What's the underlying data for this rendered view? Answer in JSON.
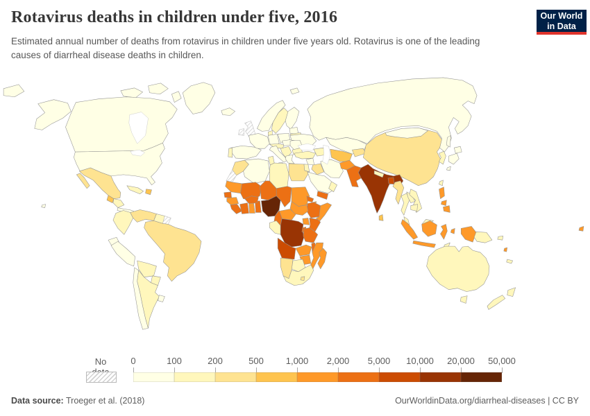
{
  "header": {
    "title": "Rotavirus deaths in children under five, 2016",
    "subtitle": "Estimated annual number of deaths from rotavirus in children under five years old. Rotavirus is one of the leading causes of diarrheal disease deaths in children.",
    "logo": {
      "line1": "Our World",
      "line2": "in Data",
      "bg_color": "#002147",
      "accent_color": "#e0342c"
    }
  },
  "legend": {
    "no_data_label": "No data",
    "tick_labels": [
      "0",
      "100",
      "200",
      "500",
      "1,000",
      "2,000",
      "5,000",
      "10,000",
      "20,000",
      "50,000"
    ],
    "colors": [
      "#ffffe5",
      "#fff7bc",
      "#fee391",
      "#fec44f",
      "#fe9929",
      "#ec7014",
      "#cc4c02",
      "#993404",
      "#662506"
    ]
  },
  "footer": {
    "source_label": "Data source:",
    "source_value": " Troeger et al. (2018)",
    "right_text": "OurWorldinData.org/diarrheal-diseases | CC BY"
  },
  "chart_data": {
    "type": "heatmap",
    "subtype": "choropleth-world-map",
    "title": "Rotavirus deaths in children under five, 2016",
    "unit": "estimated annual deaths from rotavirus in children under five",
    "bin_edges": [
      0,
      100,
      200,
      500,
      1000,
      2000,
      5000,
      10000,
      20000,
      50000
    ],
    "bin_colors": [
      "#ffffe5",
      "#fff7bc",
      "#fee391",
      "#fec44f",
      "#fe9929",
      "#ec7014",
      "#cc4c02",
      "#993404",
      "#662506"
    ],
    "bin_ranges": [
      "0–100",
      "100–200",
      "200–500",
      "500–1,000",
      "1,000–2,000",
      "2,000–5,000",
      "5,000–10,000",
      "10,000–20,000",
      "20,000–50,000"
    ],
    "no_data": {
      "label": "No data",
      "pattern": "diagonal-hatch"
    },
    "countries": [
      {
        "id": "russia",
        "name": "Russia",
        "bin": 0
      },
      {
        "id": "canada",
        "name": "Canada",
        "bin": 0
      },
      {
        "id": "usa",
        "name": "United States",
        "bin": 0
      },
      {
        "id": "greenland",
        "name": "Greenland",
        "bin": 0
      },
      {
        "id": "mexico",
        "name": "Mexico",
        "bin": 2
      },
      {
        "id": "guatemala",
        "name": "Guatemala",
        "bin": 3
      },
      {
        "id": "honduras-nicaragua",
        "name": "Honduras & Nicaragua",
        "bin": 1
      },
      {
        "id": "costa-rica-panama",
        "name": "Costa Rica & Panama",
        "bin": 0
      },
      {
        "id": "cuba",
        "name": "Cuba",
        "bin": 1
      },
      {
        "id": "hispaniola",
        "name": "Haiti & Dominican Republic",
        "bin": 3
      },
      {
        "id": "colombia",
        "name": "Colombia",
        "bin": 1
      },
      {
        "id": "venezuela",
        "name": "Venezuela",
        "bin": 2
      },
      {
        "id": "guyana-suriname",
        "name": "Guyana & Suriname",
        "bin": 1
      },
      {
        "id": "french-guiana",
        "name": "French Guiana",
        "no_data": true
      },
      {
        "id": "brazil",
        "name": "Brazil",
        "bin": 2
      },
      {
        "id": "ecuador",
        "name": "Ecuador",
        "bin": 0
      },
      {
        "id": "peru",
        "name": "Peru",
        "bin": 0
      },
      {
        "id": "bolivia",
        "name": "Bolivia",
        "bin": 1
      },
      {
        "id": "paraguay",
        "name": "Paraguay",
        "bin": 1
      },
      {
        "id": "chile",
        "name": "Chile",
        "bin": 0
      },
      {
        "id": "argentina",
        "name": "Argentina",
        "bin": 1
      },
      {
        "id": "uruguay",
        "name": "Uruguay",
        "bin": 0
      },
      {
        "id": "iceland",
        "name": "Iceland",
        "bin": 0
      },
      {
        "id": "uk",
        "name": "United Kingdom",
        "no_data": true
      },
      {
        "id": "ireland",
        "name": "Ireland",
        "no_data": true
      },
      {
        "id": "norway",
        "name": "Norway",
        "bin": 0
      },
      {
        "id": "sweden",
        "name": "Sweden",
        "bin": 1
      },
      {
        "id": "finland",
        "name": "Finland",
        "bin": 0
      },
      {
        "id": "denmark",
        "name": "Denmark",
        "bin": 1
      },
      {
        "id": "baltics",
        "name": "Baltic states",
        "bin": 0
      },
      {
        "id": "belarus",
        "name": "Belarus",
        "bin": 1
      },
      {
        "id": "poland",
        "name": "Poland",
        "bin": 0
      },
      {
        "id": "germany",
        "name": "Germany",
        "bin": 0
      },
      {
        "id": "france",
        "name": "France",
        "bin": 0
      },
      {
        "id": "spain",
        "name": "Spain",
        "bin": 0
      },
      {
        "id": "portugal",
        "name": "Portugal",
        "bin": 1
      },
      {
        "id": "italy",
        "name": "Italy",
        "bin": 0
      },
      {
        "id": "switzerland-austria",
        "name": "Switzerland & Austria",
        "bin": 1
      },
      {
        "id": "czech-hungary",
        "name": "Czechia, Slovakia & Hungary",
        "bin": 0
      },
      {
        "id": "balkans",
        "name": "Western Balkans",
        "bin": 1
      },
      {
        "id": "romania",
        "name": "Romania",
        "bin": 0
      },
      {
        "id": "bulgaria",
        "name": "Bulgaria",
        "bin": 1
      },
      {
        "id": "greece",
        "name": "Greece",
        "bin": 0
      },
      {
        "id": "ukraine",
        "name": "Ukraine",
        "bin": 0
      },
      {
        "id": "turkey",
        "name": "Turkey",
        "bin": 1
      },
      {
        "id": "caucasus",
        "name": "Caucasus states",
        "bin": 1
      },
      {
        "id": "syria",
        "name": "Syria",
        "bin": 0
      },
      {
        "id": "israel-jordan",
        "name": "Israel & Jordan",
        "bin": 1
      },
      {
        "id": "iraq",
        "name": "Iraq",
        "bin": 2
      },
      {
        "id": "saudi-arabia",
        "name": "Saudi Arabia",
        "bin": 0
      },
      {
        "id": "yemen",
        "name": "Yemen",
        "bin": 5
      },
      {
        "id": "oman",
        "name": "Oman",
        "bin": 1
      },
      {
        "id": "iran",
        "name": "Iran",
        "bin": 0
      },
      {
        "id": "kazakhstan",
        "name": "Kazakhstan",
        "bin": 0
      },
      {
        "id": "turkmenistan-uzbekistan",
        "name": "Turkmenistan & Uzbekistan",
        "bin": 3
      },
      {
        "id": "kyrgyzstan-tajikistan",
        "name": "Kyrgyzstan & Tajikistan",
        "bin": 2
      },
      {
        "id": "afghanistan",
        "name": "Afghanistan",
        "bin": 4
      },
      {
        "id": "pakistan",
        "name": "Pakistan",
        "bin": 5
      },
      {
        "id": "india",
        "name": "India",
        "bin": 7
      },
      {
        "id": "nepal",
        "name": "Nepal",
        "bin": 1
      },
      {
        "id": "bangladesh",
        "name": "Bangladesh",
        "bin": 6
      },
      {
        "id": "sri-lanka",
        "name": "Sri Lanka",
        "bin": 3
      },
      {
        "id": "myanmar",
        "name": "Myanmar",
        "bin": 2
      },
      {
        "id": "thailand",
        "name": "Thailand",
        "bin": 1
      },
      {
        "id": "laos",
        "name": "Laos",
        "bin": 1
      },
      {
        "id": "vietnam",
        "name": "Vietnam",
        "bin": 1
      },
      {
        "id": "cambodia",
        "name": "Cambodia",
        "bin": 1
      },
      {
        "id": "malaysia",
        "name": "Malaysia",
        "bin": 1
      },
      {
        "id": "china",
        "name": "China",
        "bin": 2
      },
      {
        "id": "mongolia",
        "name": "Mongolia",
        "bin": 0
      },
      {
        "id": "koreas",
        "name": "North & South Korea",
        "bin": 1
      },
      {
        "id": "japan",
        "name": "Japan",
        "bin": 0
      },
      {
        "id": "taiwan",
        "name": "Taiwan",
        "bin": 1
      },
      {
        "id": "philippines",
        "name": "Philippines",
        "bin": 4
      },
      {
        "id": "indonesia",
        "name": "Indonesia",
        "bin": 4
      },
      {
        "id": "timor",
        "name": "Timor-Leste",
        "bin": 1
      },
      {
        "id": "papua-new-guinea",
        "name": "Papua New Guinea",
        "bin": 1
      },
      {
        "id": "australia",
        "name": "Australia",
        "bin": 1
      },
      {
        "id": "new-zealand",
        "name": "New Zealand",
        "bin": 1
      },
      {
        "id": "solomon-islands",
        "name": "Solomon Islands",
        "bin": 1
      },
      {
        "id": "vanuatu",
        "name": "Vanuatu",
        "bin": 4
      },
      {
        "id": "fiji",
        "name": "Fiji",
        "bin": 4
      },
      {
        "id": "new-caledonia",
        "name": "New Caledonia",
        "bin": 1
      },
      {
        "id": "morocco",
        "name": "Morocco",
        "bin": 2
      },
      {
        "id": "western-sahara",
        "name": "Western Sahara",
        "no_data": true
      },
      {
        "id": "algeria",
        "name": "Algeria",
        "bin": 0
      },
      {
        "id": "tunisia",
        "name": "Tunisia",
        "bin": 1
      },
      {
        "id": "libya",
        "name": "Libya",
        "bin": 1
      },
      {
        "id": "egypt",
        "name": "Egypt",
        "bin": 2
      },
      {
        "id": "mauritania",
        "name": "Mauritania",
        "bin": 4
      },
      {
        "id": "mali",
        "name": "Mali",
        "bin": 5
      },
      {
        "id": "senegal",
        "name": "Senegal",
        "bin": 5
      },
      {
        "id": "guinea",
        "name": "Guinea",
        "bin": 4
      },
      {
        "id": "sierra-leone-liberia",
        "name": "Sierra Leone & Liberia",
        "bin": 5
      },
      {
        "id": "cote-divoire",
        "name": "Côte d'Ivoire",
        "bin": 5
      },
      {
        "id": "ghana",
        "name": "Ghana",
        "bin": 4
      },
      {
        "id": "togo-benin",
        "name": "Togo & Benin",
        "bin": 5
      },
      {
        "id": "burkina-faso",
        "name": "Burkina Faso",
        "bin": 5
      },
      {
        "id": "niger",
        "name": "Niger",
        "bin": 5
      },
      {
        "id": "nigeria",
        "name": "Nigeria",
        "bin": 8
      },
      {
        "id": "chad",
        "name": "Chad",
        "bin": 5
      },
      {
        "id": "sudan",
        "name": "Sudan",
        "bin": 4
      },
      {
        "id": "eritrea",
        "name": "Eritrea",
        "bin": 5
      },
      {
        "id": "djibouti",
        "name": "Djibouti",
        "bin": 4
      },
      {
        "id": "ethiopia",
        "name": "Ethiopia",
        "bin": 5
      },
      {
        "id": "somalia",
        "name": "Somalia",
        "bin": 4
      },
      {
        "id": "south-sudan",
        "name": "South Sudan",
        "bin": 4
      },
      {
        "id": "central-african-republic",
        "name": "Central African Republic",
        "bin": 4
      },
      {
        "id": "cameroon",
        "name": "Cameroon",
        "bin": 5
      },
      {
        "id": "uganda",
        "name": "Uganda",
        "bin": 4
      },
      {
        "id": "kenya",
        "name": "Kenya",
        "bin": 5
      },
      {
        "id": "dr-congo",
        "name": "Democratic Republic of Congo",
        "bin": 7
      },
      {
        "id": "congo-gabon",
        "name": "Congo & Gabon",
        "bin": 1
      },
      {
        "id": "rwanda-burundi",
        "name": "Rwanda & Burundi",
        "bin": 5
      },
      {
        "id": "tanzania",
        "name": "Tanzania",
        "bin": 5
      },
      {
        "id": "angola",
        "name": "Angola",
        "bin": 6
      },
      {
        "id": "zambia",
        "name": "Zambia",
        "bin": 4
      },
      {
        "id": "malawi",
        "name": "Malawi",
        "bin": 5
      },
      {
        "id": "mozambique",
        "name": "Mozambique",
        "bin": 4
      },
      {
        "id": "zimbabwe",
        "name": "Zimbabwe",
        "bin": 4
      },
      {
        "id": "botswana",
        "name": "Botswana",
        "bin": 1
      },
      {
        "id": "namibia",
        "name": "Namibia",
        "bin": 2
      },
      {
        "id": "south-africa",
        "name": "South Africa",
        "bin": 1
      },
      {
        "id": "lesotho",
        "name": "Lesotho",
        "bin": 2
      },
      {
        "id": "madagascar",
        "name": "Madagascar",
        "bin": 4
      }
    ]
  }
}
